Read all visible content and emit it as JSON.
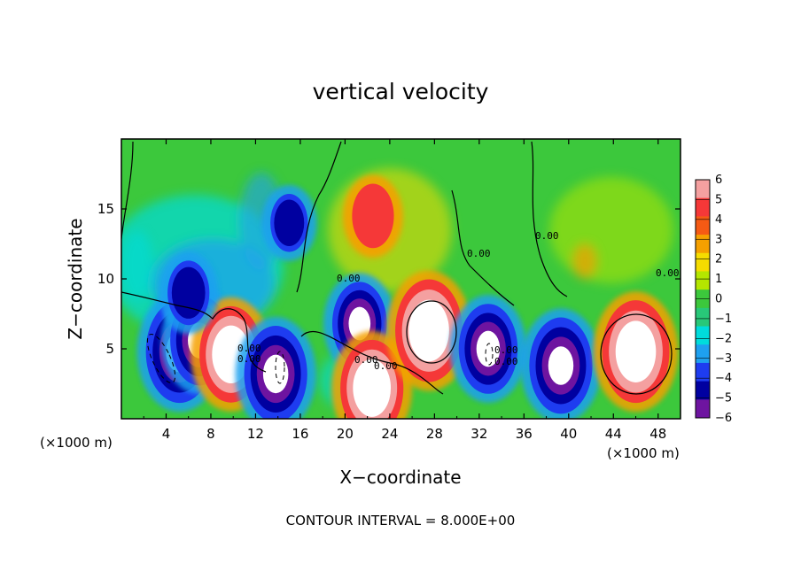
{
  "chart_data": {
    "type": "heatmap",
    "title": "vertical velocity",
    "xlabel": "X−coordinate",
    "ylabel": "Z−coordinate",
    "x_unit": "(×1000 m)",
    "y_unit": "(×1000 m)",
    "xlim": [
      0,
      50
    ],
    "ylim": [
      0,
      20
    ],
    "x_ticks": [
      "4",
      "8",
      "12",
      "16",
      "20",
      "24",
      "28",
      "32",
      "36",
      "40",
      "44",
      "48"
    ],
    "y_ticks": [
      "5",
      "10",
      "15"
    ],
    "footer": "CONTOUR INTERVAL = 8.000E+00",
    "contour_labels": [
      "0.00",
      "0.00",
      "0.00",
      "0.00",
      "0.00",
      "0.00",
      "0.00",
      "0.00",
      "0.00",
      "0.00"
    ],
    "colorbar": {
      "labels": [
        "6",
        "5",
        "4",
        "3",
        "2",
        "1",
        "0",
        "−1",
        "−2",
        "−3",
        "−4",
        "−5",
        "−6"
      ],
      "range": [
        -6,
        6
      ],
      "colors": [
        "#f4a0a0",
        "#f53838",
        "#f55a14",
        "#f5a000",
        "#f5dc00",
        "#b4e600",
        "#3cc83c",
        "#28c878",
        "#00dcdc",
        "#1ea0f0",
        "#1e3cf0",
        "#0000a0",
        "#6e14a0"
      ]
    },
    "features": [
      {
        "x": 5.2,
        "z": 4.8,
        "sign": "down",
        "strength": 1.0
      },
      {
        "x": 7.0,
        "z": 5.6,
        "sign": "down",
        "strength": 0.8
      },
      {
        "x": 9.8,
        "z": 4.6,
        "sign": "up",
        "strength": 0.9
      },
      {
        "x": 13.8,
        "z": 3.2,
        "sign": "down",
        "strength": 0.9
      },
      {
        "x": 21.3,
        "z": 6.8,
        "sign": "down",
        "strength": 0.7
      },
      {
        "x": 22.4,
        "z": 2.2,
        "sign": "up",
        "strength": 0.9
      },
      {
        "x": 27.5,
        "z": 6.3,
        "sign": "up",
        "strength": 1.0
      },
      {
        "x": 32.8,
        "z": 5.0,
        "sign": "down",
        "strength": 0.8
      },
      {
        "x": 39.3,
        "z": 3.8,
        "sign": "down",
        "strength": 0.9
      },
      {
        "x": 46.0,
        "z": 4.8,
        "sign": "up",
        "strength": 1.0
      },
      {
        "x": 22.5,
        "z": 14.5,
        "sign": "up",
        "strength": 0.4
      },
      {
        "x": 15.0,
        "z": 14.0,
        "sign": "down",
        "strength": 0.3
      },
      {
        "x": 6.0,
        "z": 9.0,
        "sign": "down",
        "strength": 0.4
      }
    ]
  }
}
